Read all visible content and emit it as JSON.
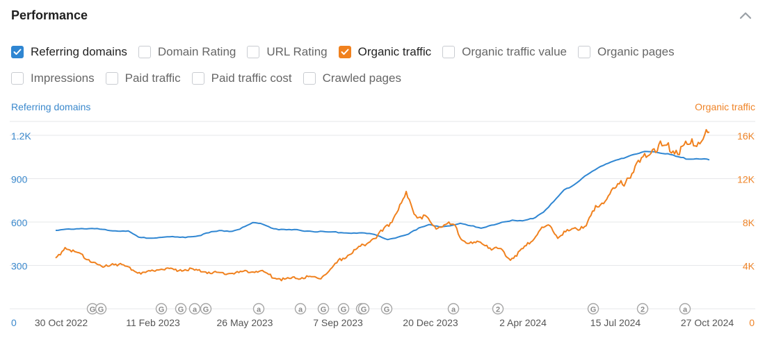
{
  "panel": {
    "title": "Performance"
  },
  "icons": {
    "collapse": "chevron-up-icon",
    "check": "checkmark-icon"
  },
  "colors": {
    "referring_domains": "#2f86d2",
    "organic_traffic": "#f0811e",
    "grid": "#e6e7ea",
    "marker": "#a6a6a6"
  },
  "metrics": [
    [
      {
        "id": "referring-domains",
        "label": "Referring domains",
        "checked": true,
        "color": "#2f86d2"
      },
      {
        "id": "domain-rating",
        "label": "Domain Rating",
        "checked": false
      },
      {
        "id": "url-rating",
        "label": "URL Rating",
        "checked": false
      },
      {
        "id": "organic-traffic",
        "label": "Organic traffic",
        "checked": true,
        "color": "#f0811e"
      },
      {
        "id": "organic-traffic-value",
        "label": "Organic traffic value",
        "checked": false
      },
      {
        "id": "organic-pages",
        "label": "Organic pages",
        "checked": false
      }
    ],
    [
      {
        "id": "impressions",
        "label": "Impressions",
        "checked": false
      },
      {
        "id": "paid-traffic",
        "label": "Paid traffic",
        "checked": false
      },
      {
        "id": "paid-traffic-cost",
        "label": "Paid traffic cost",
        "checked": false
      },
      {
        "id": "crawled-pages",
        "label": "Crawled pages",
        "checked": false
      }
    ]
  ],
  "chart_data": {
    "type": "line",
    "left_axis_title": "Referring domains",
    "right_axis_title": "Organic traffic",
    "left_ylim": [
      0,
      1200
    ],
    "right_ylim": [
      0,
      16000
    ],
    "left_ticks": [
      "0",
      "300",
      "600",
      "900",
      "1.2K"
    ],
    "right_ticks": [
      "0",
      "4K",
      "8K",
      "12K",
      "16K"
    ],
    "x_ticks": [
      "30 Oct 2022",
      "11 Feb 2023",
      "26 May 2023",
      "7 Sep 2023",
      "20 Dec 2023",
      "2 Apr 2024",
      "15 Jul 2024",
      "27 Oct 2024"
    ],
    "grid": true,
    "series": [
      {
        "name": "Referring domains",
        "axis": "left",
        "color": "#2f86d2",
        "values": [
          540,
          548,
          555,
          555,
          552,
          545,
          540,
          538,
          492,
          490,
          495,
          498,
          492,
          500,
          510,
          530,
          540,
          538,
          560,
          595,
          585,
          555,
          545,
          545,
          540,
          535,
          530,
          530,
          525,
          525,
          520,
          510,
          480,
          495,
          515,
          560,
          585,
          565,
          570,
          595,
          575,
          555,
          575,
          600,
          610,
          605,
          625,
          670,
          740,
          820,
          860,
          920,
          960,
          1000,
          1030,
          1050,
          1070,
          1090,
          1085,
          1070,
          1050,
          1035,
          1040,
          1030
        ]
      },
      {
        "name": "Organic traffic",
        "axis": "right",
        "color": "#f0811e",
        "values": [
          4600,
          5700,
          5200,
          4800,
          4300,
          3800,
          4200,
          4000,
          3700,
          3300,
          3400,
          3700,
          3600,
          3600,
          3650,
          3500,
          3400,
          3300,
          3250,
          3300,
          3400,
          3500,
          3400,
          2900,
          2700,
          2800,
          2900,
          2900,
          2850,
          3600,
          4500,
          5000,
          5600,
          6200,
          6800,
          7500,
          9000,
          10500,
          8700,
          8500,
          7500,
          7800,
          7700,
          6300,
          6000,
          6100,
          5600,
          5400,
          4600,
          5200,
          6100,
          7200,
          7700,
          6700,
          7100,
          7400,
          7800,
          9200,
          10200,
          11000,
          11700,
          12800,
          13800,
          14800,
          15000,
          14800,
          14700,
          15200,
          15600,
          16300
        ]
      }
    ],
    "event_markers": [
      "G",
      "G",
      "G",
      "G",
      "a",
      "G",
      "a",
      "a",
      "G",
      "G",
      "G",
      "G",
      "G",
      "a",
      "2",
      "G",
      "2",
      "a"
    ]
  }
}
